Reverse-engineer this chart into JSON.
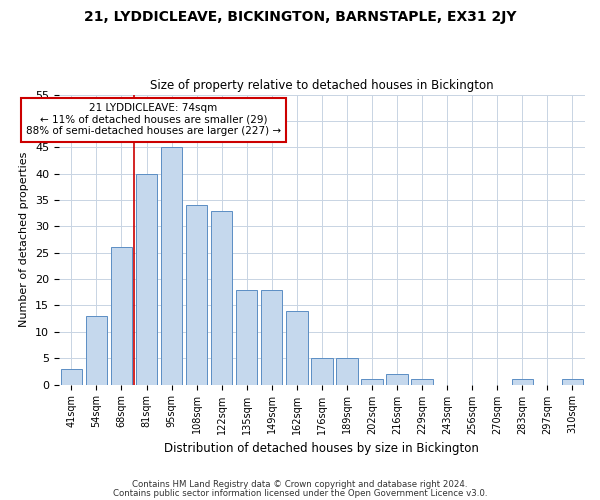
{
  "title": "21, LYDDICLEAVE, BICKINGTON, BARNSTAPLE, EX31 2JY",
  "subtitle": "Size of property relative to detached houses in Bickington",
  "xlabel": "Distribution of detached houses by size in Bickington",
  "ylabel": "Number of detached properties",
  "bin_labels": [
    "41sqm",
    "54sqm",
    "68sqm",
    "81sqm",
    "95sqm",
    "108sqm",
    "122sqm",
    "135sqm",
    "149sqm",
    "162sqm",
    "176sqm",
    "189sqm",
    "202sqm",
    "216sqm",
    "229sqm",
    "243sqm",
    "256sqm",
    "270sqm",
    "283sqm",
    "297sqm",
    "310sqm"
  ],
  "bar_values": [
    3,
    13,
    26,
    40,
    45,
    34,
    33,
    18,
    18,
    14,
    5,
    5,
    1,
    2,
    1,
    0,
    0,
    0,
    1,
    0,
    1
  ],
  "bar_color": "#c5d8ed",
  "bar_edge_color": "#5b8ec4",
  "vline_color": "#cc0000",
  "annotation_line1": "21 LYDDICLEAVE: 74sqm",
  "annotation_line2": "← 11% of detached houses are smaller (29)",
  "annotation_line3": "88% of semi-detached houses are larger (227) →",
  "annotation_box_color": "#ffffff",
  "annotation_box_edge": "#cc0000",
  "ylim": [
    0,
    55
  ],
  "yticks": [
    0,
    5,
    10,
    15,
    20,
    25,
    30,
    35,
    40,
    45,
    50,
    55
  ],
  "footnote1": "Contains HM Land Registry data © Crown copyright and database right 2024.",
  "footnote2": "Contains public sector information licensed under the Open Government Licence v3.0.",
  "background_color": "#ffffff",
  "grid_color": "#c8d4e3"
}
